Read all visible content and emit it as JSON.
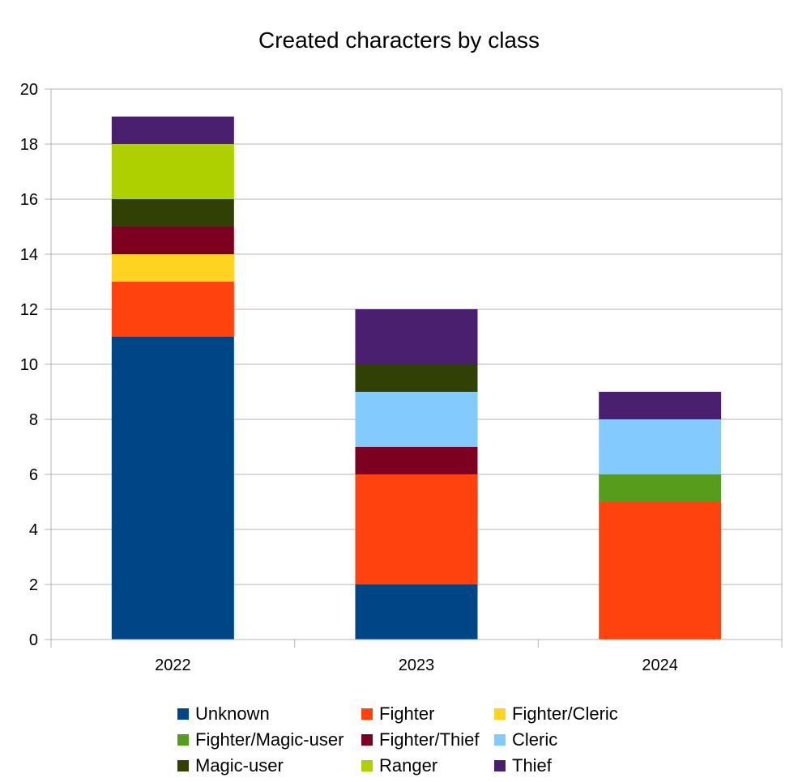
{
  "chart_data": {
    "type": "bar",
    "stacked": true,
    "title": "Created characters by class",
    "xlabel": "",
    "ylabel": "",
    "categories": [
      "2022",
      "2023",
      "2024"
    ],
    "ylim": [
      0,
      20
    ],
    "yticks": [
      0,
      2,
      4,
      6,
      8,
      10,
      12,
      14,
      16,
      18,
      20
    ],
    "grid": true,
    "legend_position": "bottom",
    "series": [
      {
        "name": "Unknown",
        "color": "#004586",
        "values": [
          11,
          2,
          0
        ]
      },
      {
        "name": "Fighter",
        "color": "#ff420e",
        "values": [
          2,
          4,
          5
        ]
      },
      {
        "name": "Fighter/Cleric",
        "color": "#ffd320",
        "values": [
          1,
          0,
          0
        ]
      },
      {
        "name": "Fighter/Magic-user",
        "color": "#579d1c",
        "values": [
          0,
          0,
          1
        ]
      },
      {
        "name": "Fighter/Thief",
        "color": "#7e0021",
        "values": [
          1,
          1,
          0
        ]
      },
      {
        "name": "Cleric",
        "color": "#83caff",
        "values": [
          0,
          2,
          2
        ]
      },
      {
        "name": "Magic-user",
        "color": "#314004",
        "values": [
          1,
          1,
          0
        ]
      },
      {
        "name": "Ranger",
        "color": "#aecf00",
        "values": [
          2,
          0,
          0
        ]
      },
      {
        "name": "Thief",
        "color": "#4b1f6f",
        "values": [
          1,
          2,
          1
        ]
      }
    ]
  }
}
